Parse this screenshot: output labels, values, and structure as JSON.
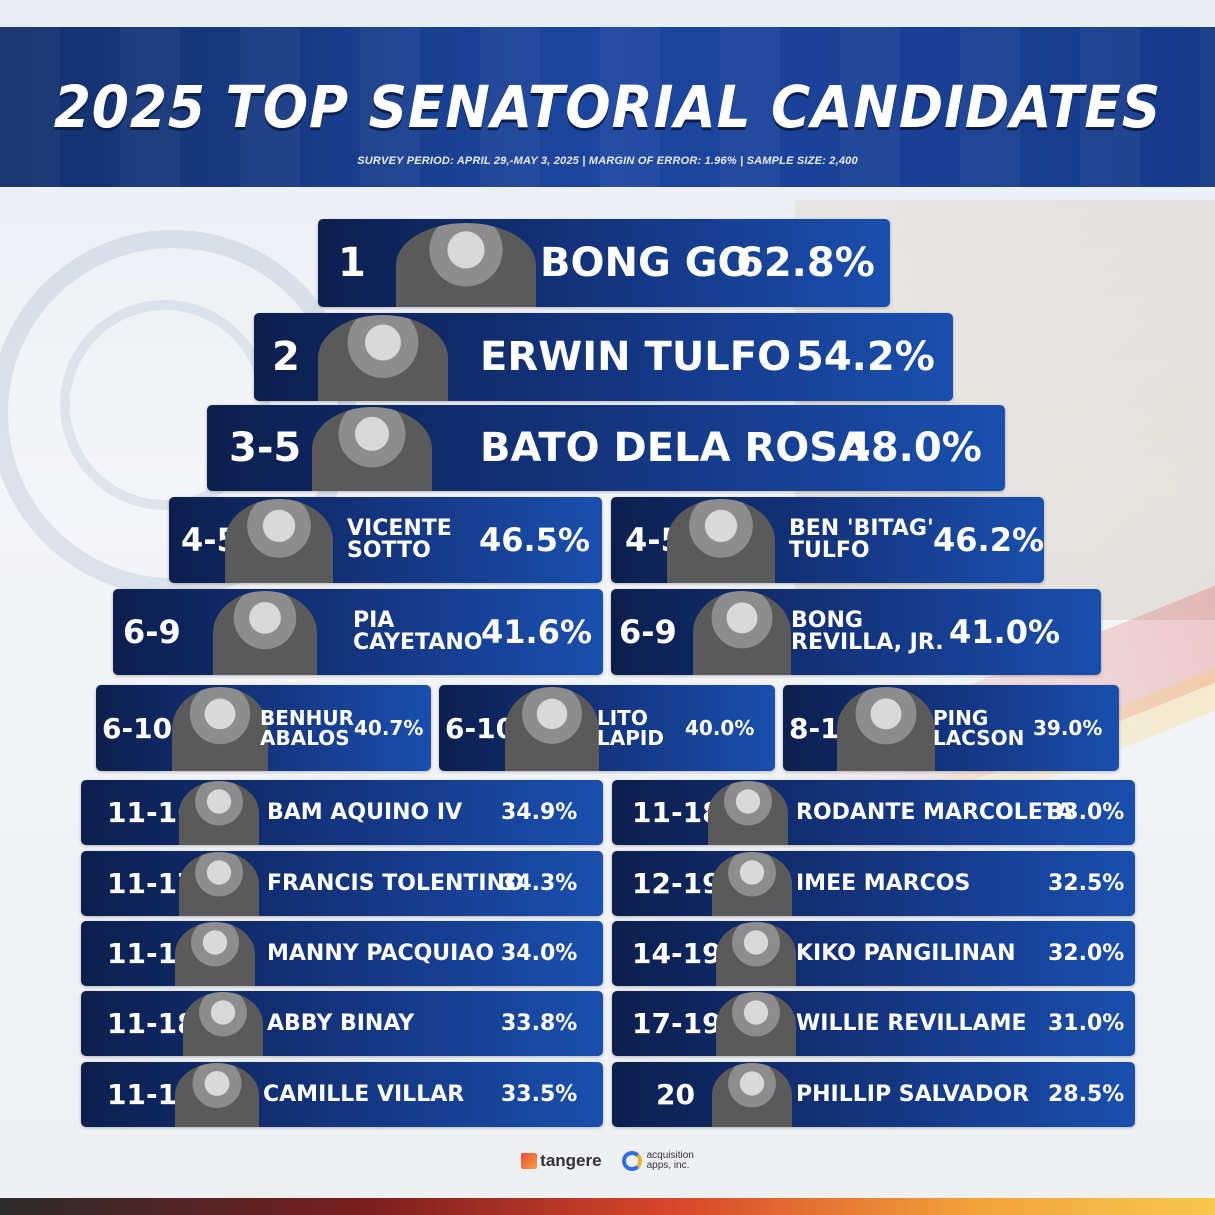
{
  "header": {
    "title": "2025 TOP SENATORIAL CANDIDATES",
    "subtitle": "SURVEY PERIOD: APRIL 29,-MAY 3, 2025 | MARGIN OF ERROR: 1.96% | SAMPLE SIZE: 2,400"
  },
  "candidates": [
    {
      "rank": "1",
      "name": "BONG GO",
      "pct": "62.8%"
    },
    {
      "rank": "2",
      "name": "ERWIN TULFO",
      "pct": "54.2%"
    },
    {
      "rank": "3-5",
      "name": "BATO DELA ROSA",
      "pct": "48.0%"
    },
    {
      "rank": "4-5",
      "name": "VICENTE SOTTO",
      "name_l1": "VICENTE",
      "name_l2": "SOTTO",
      "pct": "46.5%"
    },
    {
      "rank": "4-5",
      "name": "BEN 'BITAG' TULFO",
      "name_l1": "BEN 'BITAG'",
      "name_l2": "TULFO",
      "pct": "46.2%"
    },
    {
      "rank": "6-9",
      "name": "PIA CAYETANO",
      "name_l1": "PIA",
      "name_l2": "CAYETANO",
      "pct": "41.6%"
    },
    {
      "rank": "6-9",
      "name": "BONG REVILLA, JR.",
      "name_l1": "BONG",
      "name_l2": "REVILLA, JR.",
      "pct": "41.0%"
    },
    {
      "rank": "6-10",
      "name": "BENHUR ABALOS",
      "name_l1": "BENHUR",
      "name_l2": "ABALOS",
      "pct": "40.7%"
    },
    {
      "rank": "6-10",
      "name": "LITO LAPID",
      "name_l1": "LITO",
      "name_l2": "LAPID",
      "pct": "40.0%"
    },
    {
      "rank": "8-10",
      "name": "PING LACSON",
      "name_l1": "PING",
      "name_l2": "LACSON",
      "pct": "39.0%"
    },
    {
      "rank": "11-16",
      "name": "BAM AQUINO IV",
      "pct": "34.9%"
    },
    {
      "rank": "11-18",
      "name": "RODANTE MARCOLETA",
      "pct": "33.0%"
    },
    {
      "rank": "11-17",
      "name": "FRANCIS TOLENTINO",
      "pct": "34.3%"
    },
    {
      "rank": "12-19",
      "name": "IMEE MARCOS",
      "pct": "32.5%"
    },
    {
      "rank": "11-17",
      "name": "MANNY PACQUIAO",
      "pct": "34.0%"
    },
    {
      "rank": "14-19",
      "name": "KIKO PANGILINAN",
      "pct": "32.0%"
    },
    {
      "rank": "11-18",
      "name": "ABBY BINAY",
      "pct": "33.8%"
    },
    {
      "rank": "17-19",
      "name": "WILLIE REVILLAME",
      "pct": "31.0%"
    },
    {
      "rank": "11-18",
      "name": "CAMILLE VILLAR",
      "pct": "33.5%"
    },
    {
      "rank": "20",
      "name": "PHILLIP SALVADOR",
      "pct": "28.5%"
    }
  ],
  "footer": {
    "logo1": "tangere",
    "logo2_line1": "acquisition",
    "logo2_line2": "apps, inc."
  }
}
